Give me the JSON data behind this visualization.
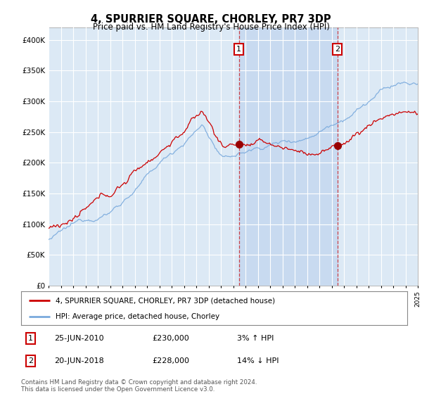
{
  "title": "4, SPURRIER SQUARE, CHORLEY, PR7 3DP",
  "subtitle": "Price paid vs. HM Land Registry's House Price Index (HPI)",
  "y_ticks": [
    0,
    50000,
    100000,
    150000,
    200000,
    250000,
    300000,
    350000,
    400000
  ],
  "y_tick_labels": [
    "£0",
    "£50K",
    "£100K",
    "£150K",
    "£200K",
    "£250K",
    "£300K",
    "£350K",
    "£400K"
  ],
  "background_color": "#ffffff",
  "plot_bg_color": "#dce9f5",
  "grid_color": "#c8d8e8",
  "shaded_color": "#c5d8f0",
  "line1_color": "#cc0000",
  "line2_color": "#7aaadd",
  "purchase1_date": "25-JUN-2010",
  "purchase1_price": 230000,
  "purchase1_pct": "3%",
  "purchase1_dir": "↑",
  "purchase1_year": 2010.47,
  "purchase2_date": "20-JUN-2018",
  "purchase2_price": 228000,
  "purchase2_pct": "14%",
  "purchase2_dir": "↓",
  "purchase2_year": 2018.47,
  "legend_line1": "4, SPURRIER SQUARE, CHORLEY, PR7 3DP (detached house)",
  "legend_line2": "HPI: Average price, detached house, Chorley",
  "footer": "Contains HM Land Registry data © Crown copyright and database right 2024.\nThis data is licensed under the Open Government Licence v3.0."
}
